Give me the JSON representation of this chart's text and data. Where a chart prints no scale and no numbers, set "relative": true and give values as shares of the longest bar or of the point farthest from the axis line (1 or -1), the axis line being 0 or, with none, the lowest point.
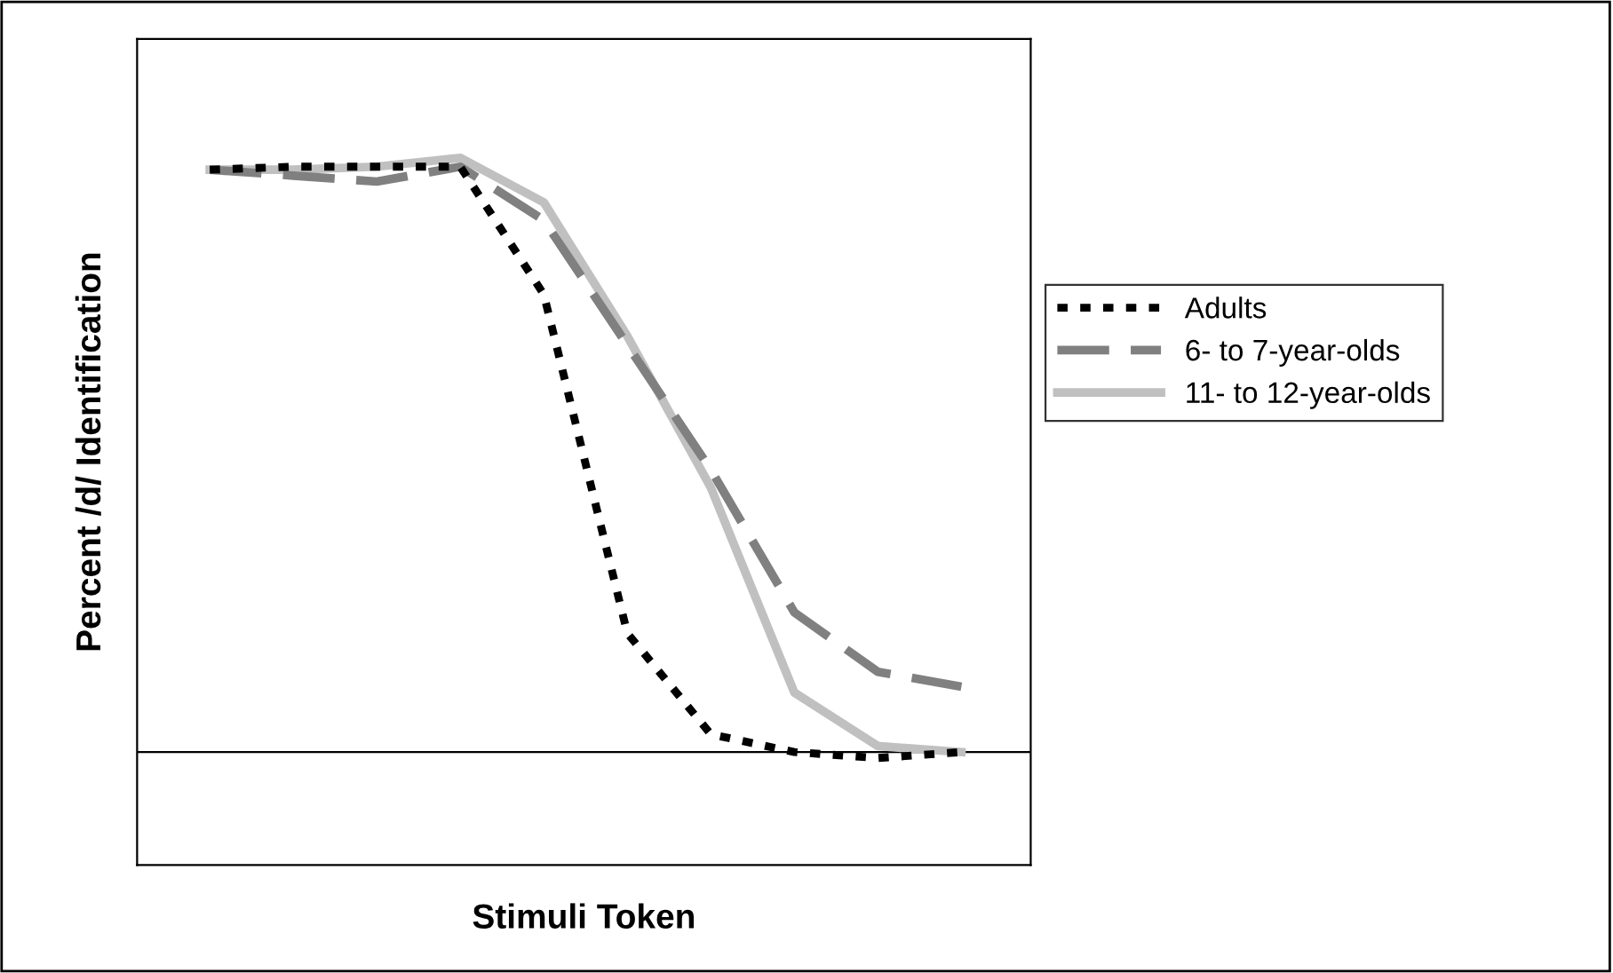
{
  "chart_data": {
    "type": "line",
    "xlabel": "Stimuli Token",
    "ylabel": "Percent /d/ Identification",
    "relative": true,
    "categories": [
      null,
      null,
      null,
      null,
      null,
      null,
      null,
      null,
      null,
      null
    ],
    "series": [
      {
        "name": "Adults",
        "color": "#000000",
        "line_style": "dotted",
        "values": [
          0.98,
          0.985,
          0.985,
          0.985,
          0.77,
          0.2,
          0.03,
          0.0,
          -0.01,
          0.0
        ]
      },
      {
        "name": "6- to 7-year-olds",
        "color": "#808080",
        "line_style": "dashed",
        "values": [
          0.98,
          0.97,
          0.96,
          0.985,
          0.895,
          0.685,
          0.475,
          0.235,
          0.135,
          0.11
        ]
      },
      {
        "name": "11- to 12-year-olds",
        "color": "#c0c0c0",
        "line_style": "solid",
        "values": [
          0.98,
          0.98,
          0.985,
          1.0,
          0.925,
          0.7,
          0.445,
          0.1,
          0.01,
          0.0
        ]
      }
    ],
    "grid": false,
    "legend": "right",
    "marker": "none"
  }
}
